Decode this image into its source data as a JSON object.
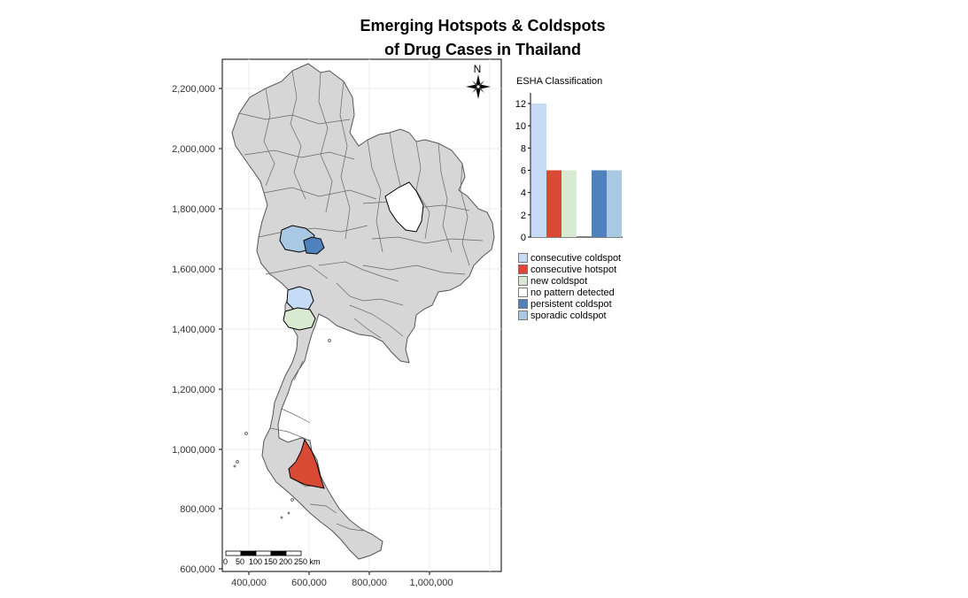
{
  "title": {
    "line1": "Emerging Hotspots & Coldspots",
    "line2": "of Drug Cases in Thailand"
  },
  "map": {
    "north_label": "N",
    "y_ticks": [
      "2,200,000",
      "2,000,000",
      "1,800,000",
      "1,600,000",
      "1,400,000",
      "1,200,000",
      "1,000,000",
      "800,000",
      "600,000"
    ],
    "x_ticks": [
      "400,000",
      "600,000",
      "800,000",
      "1,000,000"
    ],
    "scale_bar_labels": [
      "0",
      "50",
      "100",
      "150",
      "200",
      "250 km"
    ]
  },
  "chart_data": {
    "type": "bar",
    "title": "ESHA Classification",
    "categories": [
      "consecutive coldspot",
      "consecutive hotspot",
      "new coldspot",
      "no pattern detected",
      "persistent coldspot",
      "sporadic coldspot"
    ],
    "values": [
      12,
      6,
      6,
      0,
      6,
      6
    ],
    "colors": [
      "#c6dbf5",
      "#d94a35",
      "#d9ead3",
      "#ffffff",
      "#4f81bd",
      "#a8c8e3"
    ],
    "y_ticks": [
      "0",
      "2",
      "4",
      "6",
      "8",
      "10",
      "12"
    ],
    "ylim": [
      0,
      12
    ]
  },
  "legend": {
    "items": [
      {
        "label": "consecutive coldspot",
        "color": "#c6dbf5"
      },
      {
        "label": "consecutive hotspot",
        "color": "#d94a35"
      },
      {
        "label": "new coldspot",
        "color": "#d9ead3"
      },
      {
        "label": "no pattern detected",
        "color": "#ffffff"
      },
      {
        "label": "persistent coldspot",
        "color": "#4f81bd"
      },
      {
        "label": "sporadic coldspot",
        "color": "#a8c8e3"
      }
    ]
  }
}
